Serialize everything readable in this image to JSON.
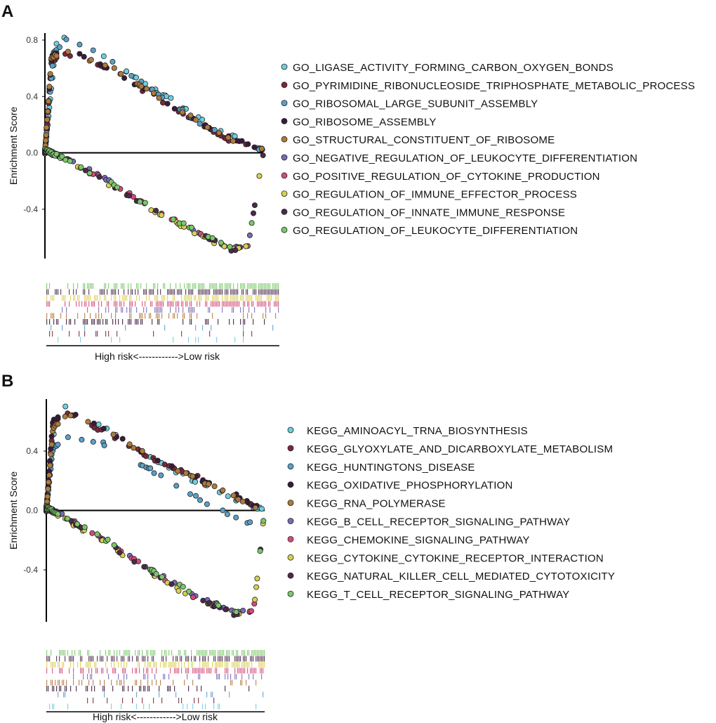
{
  "chart_data": [
    {
      "panel": "A",
      "type": "scatter",
      "ylabel": "Enrichment Score",
      "ylim": [
        -0.75,
        0.85
      ],
      "yticks": [
        "0.8",
        "0.4",
        "0.0",
        "-0.4"
      ],
      "yticks_values": [
        0.8,
        0.4,
        0.0,
        -0.4
      ],
      "bottom_label": "High risk<------------>Low risk",
      "legend_entries": [
        {
          "label": "GO_LIGASE_ACTIVITY_FORMING_CARBON_OXYGEN_BONDS",
          "color": "#6ecfe0",
          "shape": [
            [
              0,
              0
            ],
            [
              0.05,
              0.78
            ],
            [
              0.12,
              0.84
            ],
            [
              0.27,
              0.68
            ],
            [
              0.5,
              0.46
            ],
            [
              0.7,
              0.25
            ],
            [
              0.85,
              0.13
            ],
            [
              1,
              0.02
            ]
          ]
        },
        {
          "label": "GO_PYRIMIDINE_RIBONUCLEOSIDE_TRIPHOSPHATE_METABOLIC_PROCESS",
          "color": "#7a2838",
          "shape": [
            [
              0,
              0
            ],
            [
              0.03,
              0.64
            ],
            [
              0.08,
              0.71
            ],
            [
              0.25,
              0.62
            ],
            [
              0.45,
              0.44
            ],
            [
              0.65,
              0.26
            ],
            [
              0.83,
              0.1
            ],
            [
              1,
              0.02
            ]
          ]
        },
        {
          "label": "GO_RIBOSOMAL_LARGE_SUBUNIT_ASSEMBLY",
          "color": "#5aa0c8",
          "shape": [
            [
              0,
              0
            ],
            [
              0.04,
              0.72
            ],
            [
              0.1,
              0.8
            ],
            [
              0.28,
              0.68
            ],
            [
              0.48,
              0.46
            ],
            [
              0.68,
              0.24
            ],
            [
              0.85,
              0.1
            ],
            [
              1,
              0.02
            ]
          ]
        },
        {
          "label": "GO_RIBOSOME_ASSEMBLY",
          "color": "#3a1a3a",
          "shape": [
            [
              0,
              0
            ],
            [
              0.03,
              0.68
            ],
            [
              0.09,
              0.74
            ],
            [
              0.26,
              0.63
            ],
            [
              0.46,
              0.45
            ],
            [
              0.66,
              0.25
            ],
            [
              0.84,
              0.11
            ],
            [
              1,
              0.02
            ]
          ]
        },
        {
          "label": "GO_STRUCTURAL_CONSTITUENT_OF_RIBOSOME",
          "color": "#b07a3a",
          "shape": [
            [
              0,
              0
            ],
            [
              0.03,
              0.68
            ],
            [
              0.1,
              0.72
            ],
            [
              0.3,
              0.61
            ],
            [
              0.5,
              0.42
            ],
            [
              0.7,
              0.23
            ],
            [
              0.88,
              0.07
            ],
            [
              1,
              0.02
            ]
          ]
        },
        {
          "label": "GO_NEGATIVE_REGULATION_OF_LEUKOCYTE_DIFFERENTIATION",
          "color": "#7a6ab8",
          "shape": [
            [
              0,
              0.02
            ],
            [
              0.1,
              -0.04
            ],
            [
              0.3,
              -0.2
            ],
            [
              0.5,
              -0.4
            ],
            [
              0.7,
              -0.56
            ],
            [
              0.85,
              -0.68
            ],
            [
              0.93,
              -0.66
            ],
            [
              1,
              0
            ]
          ]
        },
        {
          "label": "GO_POSITIVE_REGULATION_OF_CYTOKINE_PRODUCTION",
          "color": "#d64a7a",
          "shape": [
            [
              0,
              0.02
            ],
            [
              0.1,
              -0.05
            ],
            [
              0.3,
              -0.21
            ],
            [
              0.5,
              -0.4
            ],
            [
              0.7,
              -0.57
            ],
            [
              0.86,
              -0.68
            ],
            [
              0.93,
              -0.66
            ],
            [
              1,
              0
            ]
          ]
        },
        {
          "label": "GO_REGULATION_OF_IMMUNE_EFFECTOR_PROCESS",
          "color": "#d8d050",
          "shape": [
            [
              0,
              0.02
            ],
            [
              0.1,
              -0.06
            ],
            [
              0.3,
              -0.23
            ],
            [
              0.5,
              -0.41
            ],
            [
              0.7,
              -0.58
            ],
            [
              0.86,
              -0.69
            ],
            [
              0.93,
              -0.66
            ],
            [
              1,
              0
            ]
          ]
        },
        {
          "label": "GO_REGULATION_OF_INNATE_IMMUNE_RESPONSE",
          "color": "#4a2a4a",
          "shape": [
            [
              0,
              0.02
            ],
            [
              0.1,
              -0.05
            ],
            [
              0.3,
              -0.22
            ],
            [
              0.5,
              -0.41
            ],
            [
              0.7,
              -0.57
            ],
            [
              0.86,
              -0.69
            ],
            [
              0.93,
              -0.67
            ],
            [
              1,
              0
            ]
          ]
        },
        {
          "label": "GO_REGULATION_OF_LEUKOCYTE_DIFFERENTIATION",
          "color": "#7ac86a",
          "shape": [
            [
              0,
              0.02
            ],
            [
              0.1,
              -0.05
            ],
            [
              0.3,
              -0.21
            ],
            [
              0.5,
              -0.4
            ],
            [
              0.7,
              -0.56
            ],
            [
              0.86,
              -0.68
            ],
            [
              0.93,
              -0.66
            ],
            [
              1,
              0
            ]
          ]
        }
      ]
    },
    {
      "panel": "B",
      "type": "scatter",
      "ylabel": "Enrichment Score",
      "ylim": [
        -0.75,
        0.75
      ],
      "yticks": [
        "0.4",
        "0.0",
        "-0.4"
      ],
      "yticks_values": [
        0.4,
        0.0,
        -0.4
      ],
      "bottom_label": "High risk<------------>Low risk",
      "legend_entries": [
        {
          "label": "KEGG_AMINOACYL_TRNA_BIOSYNTHESIS",
          "color": "#6ecfe0",
          "shape": [
            [
              0,
              0
            ],
            [
              0.04,
              0.6
            ],
            [
              0.1,
              0.72
            ],
            [
              0.25,
              0.58
            ],
            [
              0.45,
              0.38
            ],
            [
              0.65,
              0.22
            ],
            [
              0.82,
              0.1
            ],
            [
              0.96,
              0.02
            ],
            [
              1,
              0
            ]
          ]
        },
        {
          "label": "KEGG_GLYOXYLATE_AND_DICARBOXYLATE_METABOLISM",
          "color": "#7a2838",
          "shape": [
            [
              0,
              0
            ],
            [
              0.03,
              0.58
            ],
            [
              0.09,
              0.66
            ],
            [
              0.3,
              0.5
            ],
            [
              0.5,
              0.34
            ],
            [
              0.7,
              0.22
            ],
            [
              0.88,
              0.1
            ],
            [
              1,
              0
            ]
          ]
        },
        {
          "label": "KEGG_HUNTINGTONS_DISEASE",
          "color": "#5aa0c8",
          "shape": [
            [
              0,
              0
            ],
            [
              0.03,
              0.42
            ],
            [
              0.1,
              0.5
            ],
            [
              0.25,
              0.46
            ],
            [
              0.45,
              0.3
            ],
            [
              0.65,
              0.12
            ],
            [
              0.8,
              0.0
            ],
            [
              0.93,
              -0.08
            ],
            [
              1,
              0
            ]
          ]
        },
        {
          "label": "KEGG_OXIDATIVE_PHOSPHORYLATION",
          "color": "#3a1a3a",
          "shape": [
            [
              0,
              0
            ],
            [
              0.03,
              0.6
            ],
            [
              0.1,
              0.66
            ],
            [
              0.28,
              0.54
            ],
            [
              0.48,
              0.36
            ],
            [
              0.68,
              0.22
            ],
            [
              0.87,
              0.1
            ],
            [
              1,
              0
            ]
          ]
        },
        {
          "label": "KEGG_RNA_POLYMERASE",
          "color": "#b07a3a",
          "shape": [
            [
              0,
              0
            ],
            [
              0.03,
              0.55
            ],
            [
              0.1,
              0.65
            ],
            [
              0.3,
              0.52
            ],
            [
              0.5,
              0.34
            ],
            [
              0.7,
              0.2
            ],
            [
              0.88,
              0.08
            ],
            [
              1,
              0
            ]
          ]
        },
        {
          "label": "KEGG_B_CELL_RECEPTOR_SIGNALING_PATHWAY",
          "color": "#7a6ab8",
          "shape": [
            [
              0,
              0.02
            ],
            [
              0.1,
              -0.05
            ],
            [
              0.3,
              -0.22
            ],
            [
              0.5,
              -0.42
            ],
            [
              0.7,
              -0.58
            ],
            [
              0.86,
              -0.68
            ],
            [
              0.95,
              -0.66
            ],
            [
              1,
              0
            ]
          ]
        },
        {
          "label": "KEGG_CHEMOKINE_SIGNALING_PATHWAY",
          "color": "#d64a7a",
          "shape": [
            [
              0,
              0.02
            ],
            [
              0.1,
              -0.06
            ],
            [
              0.3,
              -0.23
            ],
            [
              0.5,
              -0.43
            ],
            [
              0.7,
              -0.6
            ],
            [
              0.86,
              -0.69
            ],
            [
              0.95,
              -0.67
            ],
            [
              1,
              0
            ]
          ]
        },
        {
          "label": "KEGG_CYTOKINE_CYTOKINE_RECEPTOR_INTERACTION",
          "color": "#d8d050",
          "shape": [
            [
              0,
              0.02
            ],
            [
              0.1,
              -0.07
            ],
            [
              0.3,
              -0.25
            ],
            [
              0.5,
              -0.45
            ],
            [
              0.7,
              -0.61
            ],
            [
              0.86,
              -0.7
            ],
            [
              0.95,
              -0.67
            ],
            [
              1,
              0
            ]
          ]
        },
        {
          "label": "KEGG_NATURAL_KILLER_CELL_MEDIATED_CYTOTOXICITY",
          "color": "#4a2a4a",
          "shape": [
            [
              0,
              0.02
            ],
            [
              0.1,
              -0.06
            ],
            [
              0.3,
              -0.24
            ],
            [
              0.5,
              -0.44
            ],
            [
              0.7,
              -0.6
            ],
            [
              0.86,
              -0.7
            ],
            [
              0.95,
              -0.68
            ],
            [
              1,
              0
            ]
          ]
        },
        {
          "label": "KEGG_T_CELL_RECEPTOR_SIGNALING_PATHWAY",
          "color": "#7ac86a",
          "shape": [
            [
              0,
              0.02
            ],
            [
              0.1,
              -0.05
            ],
            [
              0.3,
              -0.22
            ],
            [
              0.5,
              -0.42
            ],
            [
              0.7,
              -0.58
            ],
            [
              0.86,
              -0.68
            ],
            [
              0.95,
              -0.66
            ],
            [
              1,
              0
            ]
          ]
        }
      ]
    }
  ]
}
